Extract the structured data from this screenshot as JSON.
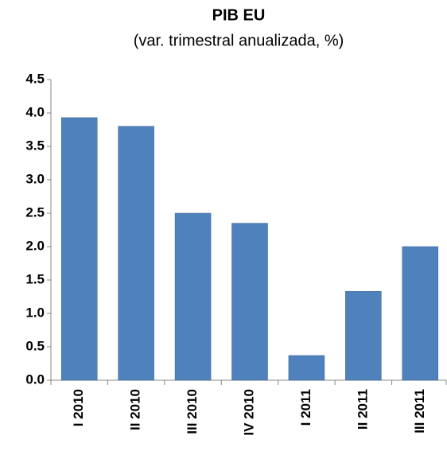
{
  "chart_data": {
    "type": "bar",
    "title": "PIB EU",
    "subtitle": "(var. trimestral anualizada, %)",
    "categories": [
      "I 2010",
      "II 2010",
      "III 2010",
      "IV 2010",
      "I 2011",
      "II 2011",
      "III 2011"
    ],
    "values": [
      3.93,
      3.8,
      2.5,
      2.35,
      0.37,
      1.33,
      2.0
    ],
    "color": "#4f81bd",
    "ylim": [
      0,
      4.5
    ],
    "yticks": [
      {
        "value": 0,
        "label": "0.0"
      },
      0.5,
      {
        "value": 1,
        "label": "1.0"
      },
      1.5,
      {
        "value": 2,
        "label": "2.0"
      },
      2.5,
      {
        "value": 3,
        "label": "3.0"
      },
      3.5,
      {
        "value": 4,
        "label": "4.0"
      },
      4.5
    ],
    "grid": false
  }
}
